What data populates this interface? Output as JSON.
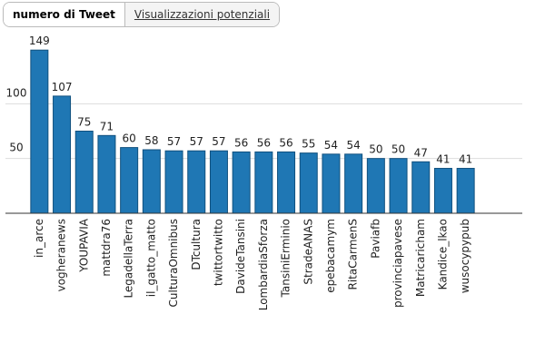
{
  "tabs": [
    "numero di Tweet",
    "Visualizzazioni potenziali"
  ],
  "chart_data": {
    "type": "bar",
    "categories": [
      "in_arce",
      "vogheranews",
      "YOUPAVIA",
      "mattdra76",
      "LegadellaTerra",
      "il_gatto_matto",
      "CulturaOmnibus",
      "DTcultura",
      "twittortwitto",
      "DavideTansini",
      "LombardiaSforza",
      "TansiniErminio",
      "StradeANAS",
      "epebacamym",
      "RitaCarmenS",
      "Paviafb",
      "provinciapavese",
      "Matricaricham",
      "Kandice_lkao",
      "wusocypypub"
    ],
    "values": [
      149,
      107,
      75,
      71,
      60,
      58,
      57,
      57,
      57,
      56,
      56,
      56,
      55,
      54,
      54,
      50,
      50,
      47,
      41,
      41
    ],
    "color": "#1f77b4",
    "ylim": [
      0,
      150
    ],
    "yticks": [
      50,
      100
    ],
    "grid": true
  }
}
